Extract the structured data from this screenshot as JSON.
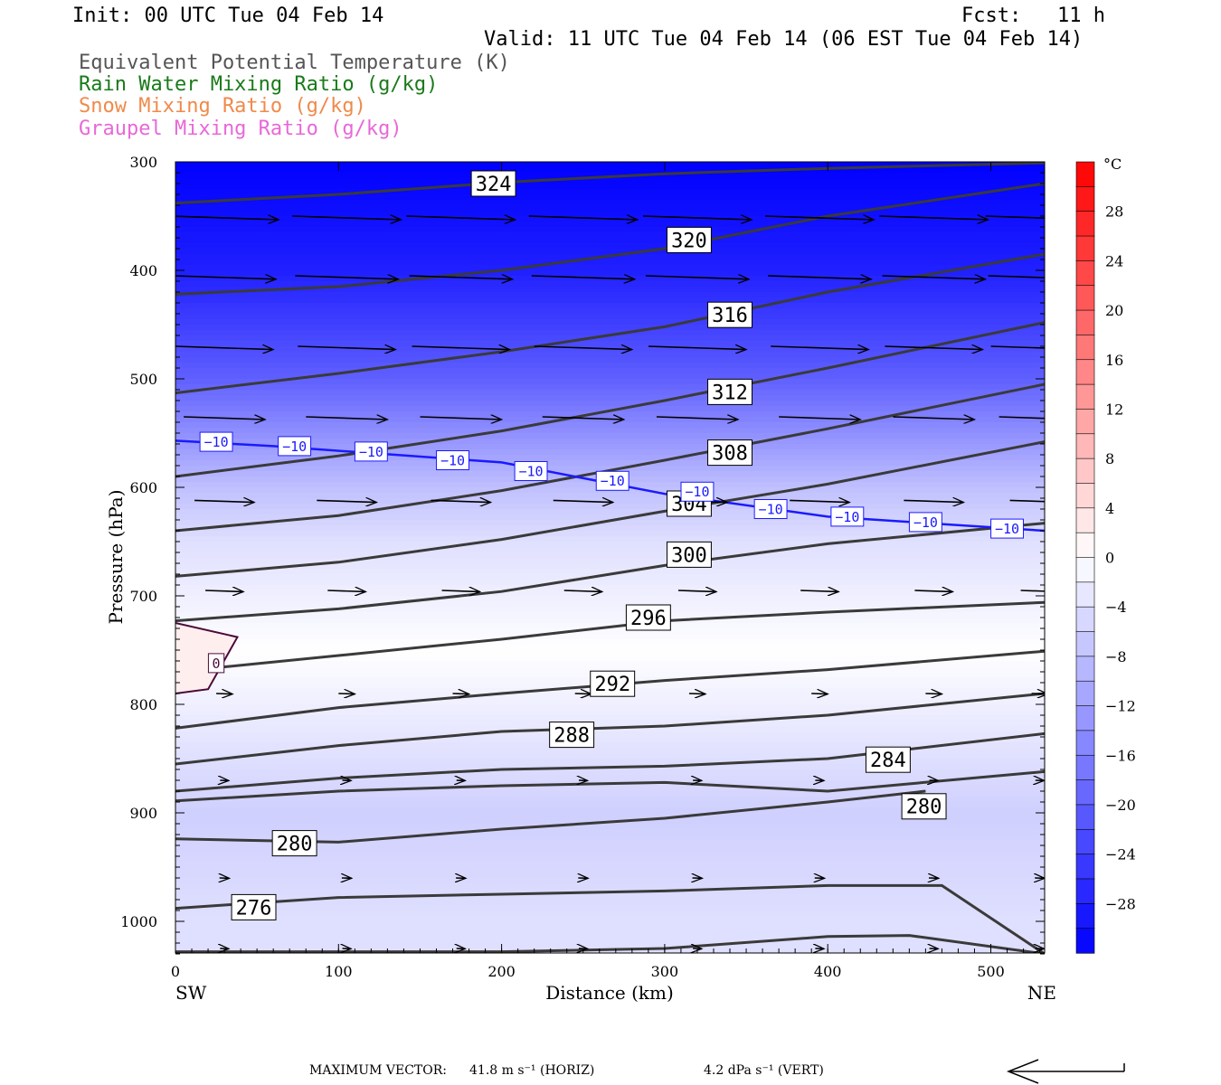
{
  "header": {
    "init": "Init: 00 UTC Tue 04 Feb 14",
    "fcst": "Fcst:   11 h",
    "valid": "Valid: 11 UTC Tue 04 Feb 14 (06 EST Tue 04 Feb 14)",
    "fields": [
      {
        "label": "Equivalent Potential Temperature (K)",
        "color": "#555555"
      },
      {
        "label": "Rain Water Mixing Ratio (g/kg)",
        "color": "#1a7a1a"
      },
      {
        "label": "Snow Mixing Ratio (g/kg)",
        "color": "#f08a4a"
      },
      {
        "label": "Graupel Mixing Ratio (g/kg)",
        "color": "#e868d8"
      }
    ]
  },
  "footer": {
    "max_vector_label": "MAXIMUM VECTOR:",
    "horiz": "41.8 m s⁻¹ (HORIZ)",
    "vert": "4.2 dPa s⁻¹ (VERT)"
  },
  "chart_data": {
    "type": "cross-section",
    "xlabel": "Distance (km)",
    "ylabel": "Pressure (hPa)",
    "xlim": [
      0,
      533
    ],
    "ylim": [
      1030,
      300
    ],
    "x_ticks": [
      0,
      100,
      200,
      300,
      400,
      500
    ],
    "y_ticks": [
      300,
      400,
      500,
      600,
      700,
      800,
      900,
      1000
    ],
    "left_end_label": "SW",
    "right_end_label": "NE",
    "colorbar": {
      "unit": "°C",
      "tick_labels": [
        "28",
        "24",
        "20",
        "16",
        "12",
        "8",
        "4",
        "0",
        "−4",
        "−8",
        "−12",
        "−16",
        "−20",
        "−24",
        "−28"
      ],
      "tick_values": [
        28,
        24,
        20,
        16,
        12,
        8,
        4,
        0,
        -4,
        -8,
        -12,
        -16,
        -20,
        -24,
        -28
      ],
      "range": [
        -32,
        32
      ],
      "step": 2
    },
    "theta_e_contours": [
      {
        "label": "324",
        "label_at": [
          195,
          320
        ],
        "points": [
          [
            0,
            338
          ],
          [
            100,
            330
          ],
          [
            200,
            319
          ],
          [
            300,
            311
          ],
          [
            400,
            306
          ],
          [
            533,
            301
          ]
        ]
      },
      {
        "label": "320",
        "label_at": [
          315,
          372
        ],
        "points": [
          [
            0,
            422
          ],
          [
            100,
            415
          ],
          [
            200,
            400
          ],
          [
            300,
            380
          ],
          [
            400,
            350
          ],
          [
            533,
            320
          ]
        ]
      },
      {
        "label": "316",
        "label_at": [
          340,
          441
        ],
        "points": [
          [
            0,
            513
          ],
          [
            100,
            495
          ],
          [
            200,
            475
          ],
          [
            300,
            452
          ],
          [
            400,
            420
          ],
          [
            533,
            385
          ]
        ]
      },
      {
        "label": "312",
        "label_at": [
          340,
          512
        ],
        "points": [
          [
            0,
            590
          ],
          [
            100,
            571
          ],
          [
            200,
            548
          ],
          [
            300,
            520
          ],
          [
            400,
            490
          ],
          [
            533,
            448
          ]
        ]
      },
      {
        "label": "308",
        "label_at": [
          340,
          568
        ],
        "points": [
          [
            0,
            640
          ],
          [
            100,
            626
          ],
          [
            200,
            603
          ],
          [
            300,
            575
          ],
          [
            400,
            546
          ],
          [
            533,
            505
          ]
        ]
      },
      {
        "label": "304",
        "label_at": [
          315,
          615
        ],
        "points": [
          [
            0,
            682
          ],
          [
            100,
            669
          ],
          [
            200,
            648
          ],
          [
            300,
            622
          ],
          [
            400,
            597
          ],
          [
            533,
            558
          ]
        ]
      },
      {
        "label": "300",
        "label_at": [
          315,
          662
        ],
        "points": [
          [
            0,
            723
          ],
          [
            100,
            712
          ],
          [
            200,
            696
          ],
          [
            300,
            672
          ],
          [
            400,
            652
          ],
          [
            533,
            633
          ]
        ]
      },
      {
        "label": "296",
        "label_at": [
          290,
          720
        ],
        "points": [
          [
            0,
            770
          ],
          [
            100,
            755
          ],
          [
            200,
            740
          ],
          [
            300,
            723
          ],
          [
            400,
            715
          ],
          [
            533,
            706
          ]
        ]
      },
      {
        "label": "292",
        "label_at": [
          268,
          781
        ],
        "points": [
          [
            0,
            822
          ],
          [
            100,
            803
          ],
          [
            200,
            790
          ],
          [
            300,
            778
          ],
          [
            400,
            768
          ],
          [
            533,
            751
          ]
        ]
      },
      {
        "label": "288",
        "label_at": [
          243,
          828
        ],
        "points": [
          [
            0,
            855
          ],
          [
            100,
            838
          ],
          [
            200,
            825
          ],
          [
            300,
            820
          ],
          [
            400,
            810
          ],
          [
            533,
            790
          ]
        ]
      },
      {
        "label": "284",
        "label_at": [
          437,
          851
        ],
        "points": [
          [
            0,
            880
          ],
          [
            100,
            868
          ],
          [
            200,
            860
          ],
          [
            300,
            857
          ],
          [
            400,
            850
          ],
          [
            533,
            827
          ]
        ]
      },
      {
        "label": "280",
        "label_at": [
          459,
          894
        ],
        "points": [
          [
            0,
            889
          ],
          [
            100,
            880
          ],
          [
            200,
            875
          ],
          [
            300,
            872
          ],
          [
            400,
            880
          ],
          [
            533,
            862
          ]
        ]
      },
      {
        "label": "280",
        "label_at": [
          73,
          928
        ],
        "points": [
          [
            0,
            924
          ],
          [
            100,
            927
          ],
          [
            200,
            915
          ],
          [
            300,
            905
          ],
          [
            400,
            890
          ],
          [
            460,
            880
          ]
        ]
      },
      {
        "label": "276",
        "label_at": [
          48,
          987
        ],
        "points": [
          [
            0,
            988
          ],
          [
            100,
            978
          ],
          [
            200,
            975
          ],
          [
            300,
            972
          ],
          [
            400,
            967
          ],
          [
            470,
            967
          ],
          [
            533,
            1030
          ]
        ]
      },
      {
        "label": "",
        "label_at": null,
        "points": [
          [
            0,
            1028
          ],
          [
            200,
            1028
          ],
          [
            300,
            1025
          ],
          [
            400,
            1014
          ],
          [
            450,
            1013
          ],
          [
            533,
            1030
          ]
        ]
      }
    ],
    "isotherm_minus10": {
      "label": "−10",
      "points": [
        [
          0,
          557
        ],
        [
          60,
          562
        ],
        [
          200,
          577
        ],
        [
          300,
          606
        ],
        [
          400,
          627
        ],
        [
          533,
          640
        ]
      ],
      "label_positions": [
        [
          25,
          558
        ],
        [
          73,
          562
        ],
        [
          120,
          567
        ],
        [
          170,
          575
        ],
        [
          218,
          585
        ],
        [
          268,
          594
        ],
        [
          320,
          604
        ],
        [
          365,
          620
        ],
        [
          412,
          627
        ],
        [
          460,
          632
        ],
        [
          510,
          638
        ]
      ]
    },
    "isotherm_0": {
      "label": "0",
      "points": [
        [
          0,
          725
        ],
        [
          38,
          738
        ],
        [
          20,
          786
        ],
        [
          0,
          790
        ]
      ],
      "label_at": [
        25,
        762
      ]
    },
    "temperature_field_samples": [
      {
        "p": 300,
        "t": -32
      },
      {
        "p": 400,
        "t": -28
      },
      {
        "p": 450,
        "t": -24
      },
      {
        "p": 500,
        "t": -20
      },
      {
        "p": 550,
        "t": -14
      },
      {
        "p": 600,
        "t": -8
      },
      {
        "p": 650,
        "t": -4
      },
      {
        "p": 700,
        "t": -2
      },
      {
        "p": 750,
        "t": 0
      },
      {
        "p": 800,
        "t": -2
      },
      {
        "p": 850,
        "t": -4
      },
      {
        "p": 900,
        "t": -6
      },
      {
        "p": 1000,
        "t": -4
      }
    ],
    "wind_vector_levels": [
      {
        "p": 350,
        "len": 1.0
      },
      {
        "p": 405,
        "len": 0.95
      },
      {
        "p": 470,
        "len": 0.9
      },
      {
        "p": 535,
        "len": 0.75
      },
      {
        "p": 612,
        "len": 0.55
      },
      {
        "p": 695,
        "len": 0.35
      },
      {
        "p": 790,
        "len": 0.15
      },
      {
        "p": 870,
        "len": 0.08
      },
      {
        "p": 960,
        "len": 0.09
      },
      {
        "p": 1025,
        "len": 0.08
      }
    ],
    "wind_vector_x": [
      30,
      105,
      175,
      250,
      320,
      395,
      465,
      530
    ],
    "colors": {
      "contour": "#3a3a3a",
      "isotherm_minus10": "#1a1aff",
      "isotherm_0": "#4a0a3a",
      "vectors": "#000000"
    }
  }
}
